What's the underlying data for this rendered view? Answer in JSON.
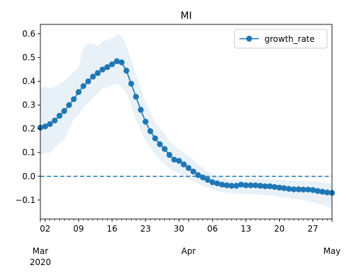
{
  "chart_data": {
    "type": "line",
    "title": "MI",
    "xlabel": "",
    "ylabel": "",
    "x_start_date": "2020-03-01",
    "x_end_date": "2020-05-01",
    "xlim": [
      "2020-03-01",
      "2020-05-01"
    ],
    "ylim": [
      -0.18,
      0.64
    ],
    "ytick_values": [
      -0.1,
      0.0,
      0.1,
      0.2,
      0.3,
      0.4,
      0.5,
      0.6
    ],
    "ytick_labels": [
      "−0.1",
      "0.0",
      "0.1",
      "0.2",
      "0.3",
      "0.4",
      "0.5",
      "0.6"
    ],
    "xtick_major_dates": [
      "2020-03-02",
      "2020-03-09",
      "2020-03-16",
      "2020-03-23",
      "2020-03-30",
      "2020-04-06",
      "2020-04-13",
      "2020-04-20",
      "2020-04-27"
    ],
    "xtick_major_labels": [
      "02",
      "09",
      "16",
      "23",
      "30",
      "06",
      "13",
      "20",
      "27"
    ],
    "xtick_month_dates": [
      "2020-03-01",
      "2020-04-01",
      "2020-05-01"
    ],
    "xtick_month_labels": [
      "Mar\n2020",
      "Apr",
      "May"
    ],
    "grid": false,
    "legend_position": "top-right",
    "reference_line": {
      "y": 0.0,
      "style": "dashed"
    },
    "series": [
      {
        "name": "growth_rate",
        "color": "#1f77b4",
        "marker": "circle",
        "y": [
          0.205,
          0.21,
          0.22,
          0.235,
          0.255,
          0.275,
          0.3,
          0.325,
          0.355,
          0.38,
          0.4,
          0.42,
          0.435,
          0.45,
          0.46,
          0.472,
          0.485,
          0.48,
          0.445,
          0.39,
          0.335,
          0.28,
          0.23,
          0.19,
          0.16,
          0.135,
          0.115,
          0.09,
          0.07,
          0.065,
          0.05,
          0.035,
          0.02,
          0.005,
          -0.005,
          -0.015,
          -0.025,
          -0.03,
          -0.035,
          -0.038,
          -0.04,
          -0.04,
          -0.035,
          -0.038,
          -0.038,
          -0.038,
          -0.04,
          -0.042,
          -0.042,
          -0.045,
          -0.048,
          -0.05,
          -0.053,
          -0.055,
          -0.055,
          -0.056,
          -0.056,
          -0.058,
          -0.062,
          -0.065,
          -0.068,
          -0.07
        ],
        "band_lower": [
          0.09,
          0.095,
          0.1,
          0.12,
          0.14,
          0.155,
          0.2,
          0.24,
          0.26,
          0.29,
          0.31,
          0.33,
          0.35,
          0.37,
          0.375,
          0.385,
          0.39,
          0.375,
          0.35,
          0.3,
          0.24,
          0.19,
          0.15,
          0.12,
          0.09,
          0.07,
          0.05,
          0.035,
          0.02,
          0.01,
          0.0,
          -0.01,
          -0.02,
          -0.03,
          -0.04,
          -0.048,
          -0.055,
          -0.062,
          -0.067,
          -0.07,
          -0.072,
          -0.073,
          -0.074,
          -0.075,
          -0.075,
          -0.076,
          -0.077,
          -0.079,
          -0.081,
          -0.083,
          -0.087,
          -0.09,
          -0.092,
          -0.095,
          -0.098,
          -0.1,
          -0.105,
          -0.11,
          -0.115,
          -0.12,
          -0.128,
          -0.135
        ],
        "band_upper": [
          0.37,
          0.38,
          0.37,
          0.38,
          0.39,
          0.4,
          0.42,
          0.44,
          0.46,
          0.54,
          0.56,
          0.56,
          0.55,
          0.57,
          0.575,
          0.58,
          0.6,
          0.59,
          0.55,
          0.49,
          0.43,
          0.37,
          0.31,
          0.27,
          0.23,
          0.2,
          0.18,
          0.15,
          0.13,
          0.115,
          0.1,
          0.085,
          0.07,
          0.05,
          0.035,
          0.02,
          0.01,
          0.0,
          -0.005,
          -0.01,
          -0.012,
          -0.013,
          -0.013,
          -0.013,
          -0.012,
          -0.012,
          -0.012,
          -0.013,
          -0.013,
          -0.014,
          -0.015,
          -0.016,
          -0.018,
          -0.02,
          -0.02,
          -0.02,
          -0.021,
          -0.022,
          -0.024,
          -0.026,
          -0.028,
          -0.03
        ]
      }
    ]
  }
}
